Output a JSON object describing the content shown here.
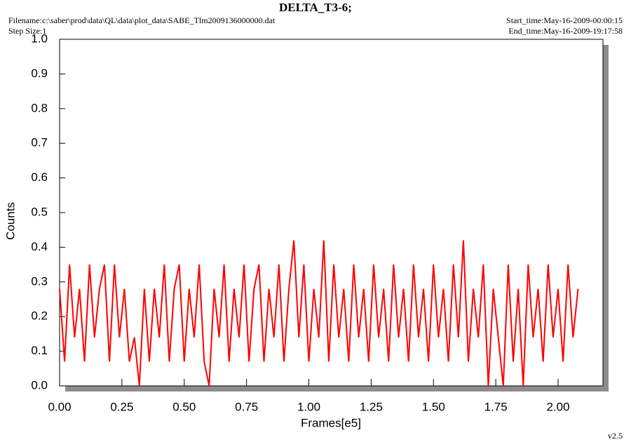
{
  "chart_data": {
    "type": "line",
    "title": "DELTA_T3-6;",
    "filename": "Filename:c:\\saber\\prod\\data\\QL\\data\\plot_data\\SABE_Tlm2009136000000.dat",
    "step_size": "Step Size:1",
    "start_time": "Start_time:May-16-2009-00:00:15",
    "end_time": "End_time:May-16-2009-19:17:58",
    "version": "v2.5",
    "xlabel": "Frames[e5]",
    "ylabel": "Counts",
    "xlim": [
      0,
      2.18
    ],
    "ylim": [
      0,
      1
    ],
    "xticks": [
      {
        "value": 0,
        "label": "0.00"
      },
      0.25,
      {
        "value": 0.5,
        "label": "0.50"
      },
      0.75,
      {
        "value": 1,
        "label": "1.00"
      },
      1.25,
      {
        "value": 1.5,
        "label": "1.50"
      },
      1.75,
      {
        "value": 2,
        "label": "2.00"
      }
    ],
    "yticks": [
      {
        "value": 0,
        "label": "0.0"
      },
      0.1,
      0.2,
      0.3,
      0.4,
      0.5,
      0.6,
      0.7,
      0.8,
      0.9,
      {
        "value": 1,
        "label": "1.0"
      }
    ],
    "x": [
      0,
      0.02,
      0.04,
      0.06,
      0.08,
      0.1,
      0.12,
      0.14,
      0.16,
      0.18,
      0.2,
      0.22,
      0.24,
      0.26,
      0.28,
      0.3,
      0.32,
      0.34,
      0.36,
      0.38,
      0.4,
      0.42,
      0.44,
      0.46,
      0.48,
      0.5,
      0.52,
      0.54,
      0.56,
      0.58,
      0.6,
      0.62,
      0.64,
      0.66,
      0.68,
      0.7,
      0.72,
      0.74,
      0.76,
      0.78,
      0.8,
      0.82,
      0.84,
      0.86,
      0.88,
      0.9,
      0.92,
      0.94,
      0.96,
      0.98,
      1,
      1.02,
      1.04,
      1.06,
      1.08,
      1.1,
      1.12,
      1.14,
      1.16,
      1.18,
      1.2,
      1.22,
      1.24,
      1.26,
      1.28,
      1.3,
      1.32,
      1.34,
      1.36,
      1.38,
      1.4,
      1.42,
      1.44,
      1.46,
      1.48,
      1.5,
      1.52,
      1.54,
      1.56,
      1.58,
      1.6,
      1.62,
      1.64,
      1.66,
      1.68,
      1.7,
      1.72,
      1.74,
      1.76,
      1.78,
      1.8,
      1.82,
      1.84,
      1.86,
      1.88,
      1.9,
      1.92,
      1.94,
      1.96,
      1.98,
      2,
      2.02,
      2.04,
      2.06,
      2.08
    ],
    "series": [
      {
        "color": "#ff0000",
        "values": [
          0.28,
          0.07,
          0.35,
          0.14,
          0.28,
          0.07,
          0.35,
          0.14,
          0.28,
          0.35,
          0.07,
          0.35,
          0.14,
          0.28,
          0.07,
          0.14,
          0,
          0.28,
          0.07,
          0.28,
          0.14,
          0.35,
          0.07,
          0.28,
          0.35,
          0.07,
          0.28,
          0.14,
          0.35,
          0.07,
          0,
          0.28,
          0.14,
          0.35,
          0.07,
          0.28,
          0.14,
          0.35,
          0.07,
          0.28,
          0.35,
          0.07,
          0.28,
          0.14,
          0.35,
          0.07,
          0.28,
          0.42,
          0.14,
          0.35,
          0.07,
          0.28,
          0.14,
          0.42,
          0.07,
          0.35,
          0.14,
          0.28,
          0.07,
          0.35,
          0.14,
          0.28,
          0.07,
          0.35,
          0.14,
          0.28,
          0.07,
          0.35,
          0.14,
          0.28,
          0.07,
          0.35,
          0.14,
          0.28,
          0.07,
          0.35,
          0.14,
          0.28,
          0.07,
          0.35,
          0.14,
          0.42,
          0.07,
          0.28,
          0.14,
          0.35,
          0,
          0.28,
          0.14,
          0,
          0.35,
          0.07,
          0.28,
          0,
          0.35,
          0.14,
          0.28,
          0.07,
          0.35,
          0.14,
          0.28,
          0.07,
          0.35,
          0.14,
          0.28
        ]
      }
    ]
  }
}
